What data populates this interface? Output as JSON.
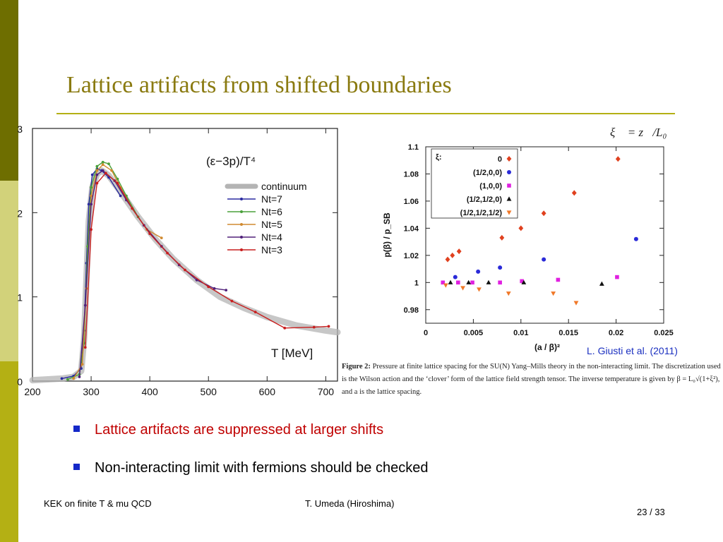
{
  "slide": {
    "title": "Lattice artifacts from shifted boundaries",
    "bullets": [
      {
        "text": "Lattice artifacts are suppressed at larger shifts",
        "color": "#c00000"
      },
      {
        "text": "Non-interacting limit with fermions should be checked",
        "color": "#000000"
      }
    ],
    "footer_left": "KEK on finite T & mu QCD",
    "footer_center": "T. Umeda (Hiroshima)",
    "footer_page": "23 / 33",
    "citation": "L. Giusti et al. (2011)",
    "formula": "ξ⃗ = z⃗/L₀",
    "colors": {
      "title": "#8a7a10",
      "sidebar_dark": "#6e6e00",
      "sidebar_light": "#d2d27a",
      "sidebar_mid": "#b4b014",
      "accent": "#1428c8"
    }
  },
  "caption": {
    "label": "Figure 2:",
    "text": "Pressure at finite lattice spacing for the SU(N) Yang–Mills theory in the non-interacting limit. The discretization used is the Wilson action and the ‘clover’ form of the lattice field strength tensor. The inverse temperature is given by β = L₀√(1+ξ²), and a is the lattice spacing."
  },
  "chart_data": [
    {
      "type": "line",
      "title": "(ε−3p)/T⁴",
      "xlabel": "T [MeV]",
      "ylabel": "",
      "xlim": [
        200,
        720
      ],
      "ylim": [
        0,
        3
      ],
      "xticks": [
        200,
        300,
        400,
        500,
        600,
        700
      ],
      "yticks": [
        0,
        1,
        2,
        3
      ],
      "legend_position": "top-right",
      "series": [
        {
          "name": "continuum",
          "color": "#b4b4b4",
          "points": [
            [
              200,
              0.01
            ],
            [
              250,
              0.03
            ],
            [
              270,
              0.05
            ],
            [
              283,
              0.12
            ],
            [
              288,
              0.5
            ],
            [
              292,
              1.2
            ],
            [
              296,
              1.9
            ],
            [
              302,
              2.3
            ],
            [
              310,
              2.46
            ],
            [
              318,
              2.5
            ],
            [
              330,
              2.44
            ],
            [
              350,
              2.25
            ],
            [
              380,
              1.95
            ],
            [
              410,
              1.68
            ],
            [
              440,
              1.45
            ],
            [
              480,
              1.2
            ],
            [
              520,
              1.0
            ],
            [
              560,
              0.87
            ],
            [
              600,
              0.76
            ],
            [
              650,
              0.66
            ],
            [
              700,
              0.6
            ],
            [
              720,
              0.58
            ]
          ]
        },
        {
          "name": "Nt=7",
          "color": "#2a2aa0",
          "points": [
            [
              250,
              0.03
            ],
            [
              270,
              0.06
            ],
            [
              283,
              0.15
            ],
            [
              288,
              0.6
            ],
            [
              292,
              1.4
            ],
            [
              296,
              2.1
            ],
            [
              302,
              2.45
            ],
            [
              310,
              2.52
            ],
            [
              318,
              2.5
            ],
            [
              330,
              2.42
            ],
            [
              350,
              2.2
            ]
          ]
        },
        {
          "name": "Nt=6",
          "color": "#4aa03a",
          "points": [
            [
              260,
              0.02
            ],
            [
              280,
              0.08
            ],
            [
              288,
              0.45
            ],
            [
              294,
              1.6
            ],
            [
              300,
              2.3
            ],
            [
              310,
              2.55
            ],
            [
              320,
              2.6
            ],
            [
              330,
              2.58
            ],
            [
              345,
              2.4
            ],
            [
              360,
              2.2
            ],
            [
              380,
              1.95
            ]
          ]
        },
        {
          "name": "Nt=5",
          "color": "#d08a30",
          "points": [
            [
              270,
              0.03
            ],
            [
              285,
              0.2
            ],
            [
              292,
              1.1
            ],
            [
              300,
              2.2
            ],
            [
              310,
              2.5
            ],
            [
              320,
              2.57
            ],
            [
              335,
              2.5
            ],
            [
              350,
              2.3
            ],
            [
              370,
              2.05
            ],
            [
              395,
              1.8
            ],
            [
              420,
              1.7
            ]
          ]
        },
        {
          "name": "Nt=4",
          "color": "#50207a",
          "points": [
            [
              280,
              0.05
            ],
            [
              290,
              0.9
            ],
            [
              300,
              2.1
            ],
            [
              310,
              2.45
            ],
            [
              320,
              2.5
            ],
            [
              340,
              2.38
            ],
            [
              360,
              2.15
            ],
            [
              390,
              1.85
            ],
            [
              420,
              1.6
            ],
            [
              450,
              1.38
            ],
            [
              480,
              1.2
            ],
            [
              510,
              1.1
            ],
            [
              530,
              1.08
            ]
          ]
        },
        {
          "name": "Nt=3",
          "color": "#c81e1e",
          "points": [
            [
              290,
              0.4
            ],
            [
              300,
              1.8
            ],
            [
              310,
              2.35
            ],
            [
              325,
              2.47
            ],
            [
              345,
              2.35
            ],
            [
              370,
              2.05
            ],
            [
              400,
              1.75
            ],
            [
              430,
              1.52
            ],
            [
              460,
              1.32
            ],
            [
              500,
              1.12
            ],
            [
              540,
              0.95
            ],
            [
              580,
              0.82
            ],
            [
              630,
              0.63
            ],
            [
              680,
              0.64
            ],
            [
              705,
              0.65
            ]
          ]
        }
      ]
    },
    {
      "type": "scatter",
      "title": "",
      "xlabel": "(a / β)²",
      "ylabel": "p(β) / p_SB",
      "xlim": [
        0,
        0.025
      ],
      "ylim": [
        0.97,
        1.1
      ],
      "xticks": [
        0,
        0.005,
        0.01,
        0.015,
        0.02,
        0.025
      ],
      "xtick_labels": [
        "0",
        "0.005",
        "0.01",
        "0.015",
        "0.02",
        "0.025"
      ],
      "yticks": [
        0.98,
        1.0,
        1.02,
        1.04,
        1.06,
        1.08,
        1.1
      ],
      "ytick_labels": [
        "0.98",
        "1",
        "1.02",
        "1.04",
        "1.06",
        "1.08",
        "1.1"
      ],
      "legend_title": "ξ:",
      "legend_position": "top-left",
      "series": [
        {
          "name": "0",
          "color": "#e0401e",
          "marker": "diamond",
          "points": [
            [
              0.0023,
              1.017
            ],
            [
              0.0028,
              1.02
            ],
            [
              0.0035,
              1.023
            ],
            [
              0.008,
              1.033
            ],
            [
              0.01,
              1.04
            ],
            [
              0.0124,
              1.051
            ],
            [
              0.0156,
              1.066
            ],
            [
              0.0202,
              1.091
            ]
          ]
        },
        {
          "name": "(1/2,0,0)",
          "color": "#2a2ad8",
          "marker": "circle",
          "points": [
            [
              0.0031,
              1.004
            ],
            [
              0.0055,
              1.008
            ],
            [
              0.0078,
              1.011
            ],
            [
              0.0124,
              1.017
            ],
            [
              0.0221,
              1.032
            ]
          ]
        },
        {
          "name": "(1,0,0)",
          "color": "#e020e0",
          "marker": "square",
          "points": [
            [
              0.0018,
              1.0
            ],
            [
              0.0034,
              1.0
            ],
            [
              0.0049,
              1.0
            ],
            [
              0.0078,
              1.0
            ],
            [
              0.0101,
              1.001
            ],
            [
              0.0139,
              1.002
            ],
            [
              0.0201,
              1.004
            ]
          ]
        },
        {
          "name": "(1/2,1/2,0)",
          "color": "#111111",
          "marker": "triangle",
          "points": [
            [
              0.0026,
              1.0
            ],
            [
              0.0045,
              1.0
            ],
            [
              0.0066,
              1.0
            ],
            [
              0.0103,
              1.0
            ],
            [
              0.0185,
              0.999
            ]
          ]
        },
        {
          "name": "(1/2,1/2,1/2)",
          "color": "#f07828",
          "marker": "triangle-down",
          "points": [
            [
              0.0021,
              0.998
            ],
            [
              0.0039,
              0.996
            ],
            [
              0.0056,
              0.995
            ],
            [
              0.0087,
              0.992
            ],
            [
              0.0134,
              0.992
            ],
            [
              0.0158,
              0.985
            ]
          ]
        }
      ]
    }
  ]
}
